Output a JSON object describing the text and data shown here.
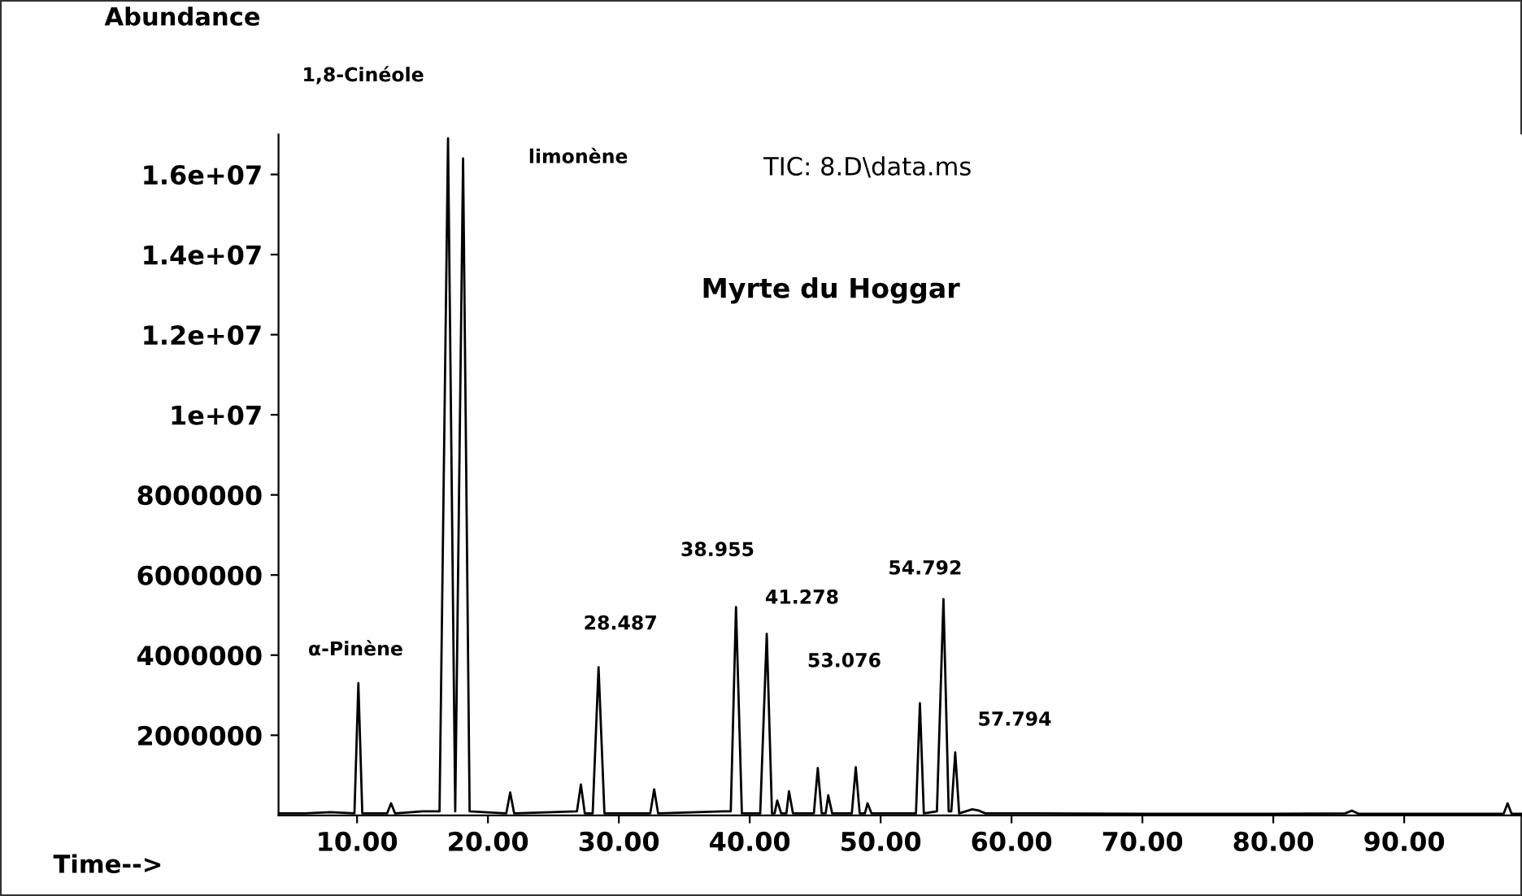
{
  "chart_data": {
    "type": "line",
    "title": "Myrte du Hoggar",
    "subtitle": "TIC: 8.D\\data.ms",
    "xlabel": "Time-->",
    "ylabel": "Abundance",
    "x": [
      4.0,
      6.0,
      8.0,
      9.8,
      10.1,
      10.4,
      12.3,
      12.6,
      12.9,
      15.0,
      16.3,
      16.95,
      17.5,
      18.1,
      18.6,
      21.4,
      21.7,
      22.0,
      26.8,
      27.1,
      27.4,
      28.0,
      28.45,
      28.9,
      32.4,
      32.7,
      33.0,
      38.0,
      38.55,
      38.95,
      39.4,
      40.8,
      41.3,
      41.7,
      41.9,
      42.1,
      42.4,
      42.8,
      43.0,
      43.3,
      44.9,
      45.2,
      45.5,
      45.8,
      46.0,
      46.3,
      47.8,
      48.1,
      48.4,
      48.8,
      49.0,
      49.3,
      52.7,
      53.0,
      53.3,
      54.3,
      54.8,
      55.2,
      55.4,
      55.7,
      56.0,
      57.0,
      57.5,
      58.0,
      60.0,
      70.0,
      80.0,
      85.5,
      86.0,
      86.5,
      97.6,
      97.9,
      98.2,
      99.0
    ],
    "values": [
      50000.0,
      50000.0,
      80000.0,
      50000.0,
      3300000.0,
      50000.0,
      50000.0,
      300000.0,
      50000.0,
      100000.0,
      100000.0,
      16900000.0,
      100000.0,
      16400000.0,
      100000.0,
      50000.0,
      570000.0,
      50000.0,
      100000.0,
      770000.0,
      50000.0,
      50000.0,
      3700000.0,
      50000.0,
      50000.0,
      650000.0,
      50000.0,
      100000.0,
      100000.0,
      5200000.0,
      50000.0,
      50000.0,
      4530000.0,
      50000.0,
      50000.0,
      370000.0,
      50000.0,
      50000.0,
      600000.0,
      50000.0,
      50000.0,
      1180000.0,
      50000.0,
      50000.0,
      500000.0,
      50000.0,
      50000.0,
      1200000.0,
      50000.0,
      50000.0,
      300000.0,
      50000.0,
      50000.0,
      2800000.0,
      50000.0,
      100000.0,
      5400000.0,
      100000.0,
      100000.0,
      1570000.0,
      50000.0,
      150000.0,
      120000.0,
      50000.0,
      50000.0,
      40000.0,
      40000.0,
      50000.0,
      120000.0,
      40000.0,
      40000.0,
      300000.0,
      40000.0,
      40000.0
    ],
    "color": "#000000",
    "xlim": [
      4,
      99
    ],
    "xticks": [
      {
        "value": 10,
        "label": "10.00"
      },
      {
        "value": 20,
        "label": "20.00"
      },
      {
        "value": 30,
        "label": "30.00"
      },
      {
        "value": 40,
        "label": "40.00"
      },
      {
        "value": 50,
        "label": "50.00"
      },
      {
        "value": 60,
        "label": "60.00"
      },
      {
        "value": 70,
        "label": "70.00"
      },
      {
        "value": 80,
        "label": "80.00"
      },
      {
        "value": 90,
        "label": "90.00"
      }
    ],
    "ylim": [
      0,
      17000000
    ],
    "yticks": [
      2000000,
      4000000,
      6000000,
      8000000,
      {
        "value": 10000000,
        "label": "1e+07"
      },
      {
        "value": 12000000,
        "label": "1.2e+07"
      },
      {
        "value": 14000000,
        "label": "1.4e+07"
      },
      {
        "value": 16000000,
        "label": "1.6e+07"
      }
    ],
    "grid": false,
    "legend": false,
    "marker": "none",
    "line_style": "solid",
    "annotations": [
      "1,8-Cinéole",
      "limonène",
      "α-Pinène",
      "28.487",
      "38.955",
      "41.278",
      "53.076",
      "54.792",
      "57.794"
    ]
  }
}
